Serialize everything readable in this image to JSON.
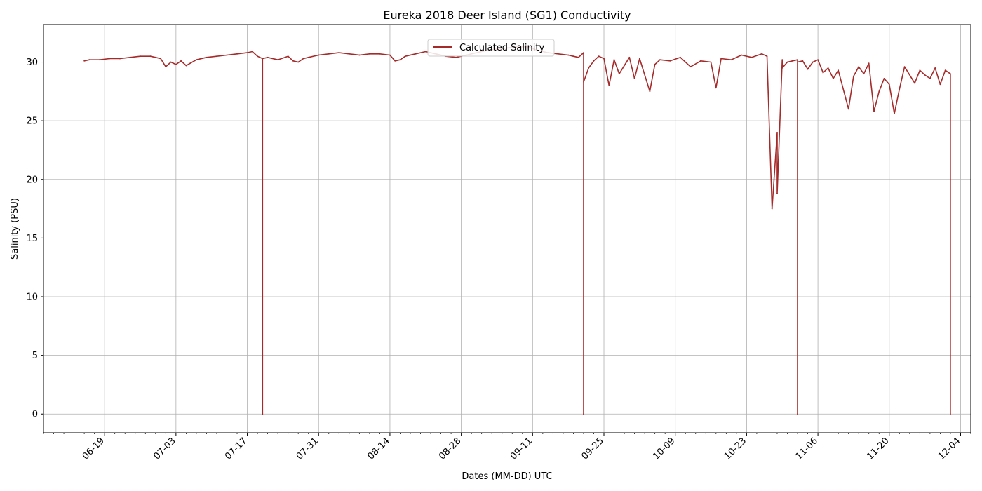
{
  "chart_data": {
    "type": "line",
    "title": "Eureka 2018 Deer Island (SG1) Conductivity",
    "xlabel": "Dates (MM-DD) UTC",
    "ylabel": "Salinity (PSU)",
    "xlim": [
      "2018-06-07",
      "2018-12-06"
    ],
    "ylim": [
      -1.6,
      33.2
    ],
    "x_ticks": [
      "06-19",
      "07-03",
      "07-17",
      "07-31",
      "08-14",
      "08-28",
      "09-11",
      "09-25",
      "10-09",
      "10-23",
      "11-06",
      "11-20",
      "12-04"
    ],
    "y_ticks": [
      0,
      5,
      10,
      15,
      20,
      25,
      30
    ],
    "grid": true,
    "legend_position": "top-center",
    "series": [
      {
        "name": "Calculated Salinity",
        "color": "#a52a2a",
        "x": [
          "2018-06-15",
          "2018-06-16",
          "2018-06-18",
          "2018-06-20",
          "2018-06-22",
          "2018-06-24",
          "2018-06-26",
          "2018-06-28",
          "2018-06-29",
          "2018-06-30",
          "2018-07-01",
          "2018-07-02",
          "2018-07-03",
          "2018-07-04",
          "2018-07-05",
          "2018-07-07",
          "2018-07-09",
          "2018-07-11",
          "2018-07-13",
          "2018-07-15",
          "2018-07-17",
          "2018-07-18",
          "2018-07-19",
          "2018-07-20",
          "2018-07-20",
          "2018-07-20",
          "2018-07-21",
          "2018-07-23",
          "2018-07-25",
          "2018-07-26",
          "2018-07-27",
          "2018-07-28",
          "2018-07-29",
          "2018-07-31",
          "2018-08-02",
          "2018-08-04",
          "2018-08-06",
          "2018-08-08",
          "2018-08-10",
          "2018-08-12",
          "2018-08-14",
          "2018-08-15",
          "2018-08-16",
          "2018-08-17",
          "2018-08-19",
          "2018-08-21",
          "2018-08-23",
          "2018-08-25",
          "2018-08-27",
          "2018-08-29",
          "2018-08-31",
          "2018-09-02",
          "2018-09-04",
          "2018-09-06",
          "2018-09-08",
          "2018-09-10",
          "2018-09-12",
          "2018-09-14",
          "2018-09-16",
          "2018-09-18",
          "2018-09-19",
          "2018-09-20",
          "2018-09-21",
          "2018-09-21",
          "2018-09-21",
          "2018-09-22",
          "2018-09-23",
          "2018-09-24",
          "2018-09-25",
          "2018-09-26",
          "2018-09-27",
          "2018-09-28",
          "2018-09-30",
          "2018-10-01",
          "2018-10-02",
          "2018-10-04",
          "2018-10-05",
          "2018-10-06",
          "2018-10-08",
          "2018-10-10",
          "2018-10-12",
          "2018-10-14",
          "2018-10-16",
          "2018-10-17",
          "2018-10-18",
          "2018-10-20",
          "2018-10-22",
          "2018-10-24",
          "2018-10-26",
          "2018-10-27",
          "2018-10-28",
          "2018-10-29",
          "2018-10-29",
          "2018-10-30",
          "2018-10-30",
          "2018-10-31",
          "2018-11-01",
          "2018-11-02",
          "2018-11-02",
          "2018-11-02",
          "2018-11-03",
          "2018-11-04",
          "2018-11-05",
          "2018-11-06",
          "2018-11-07",
          "2018-11-08",
          "2018-11-09",
          "2018-11-10",
          "2018-11-12",
          "2018-11-13",
          "2018-11-14",
          "2018-11-15",
          "2018-11-16",
          "2018-11-17",
          "2018-11-18",
          "2018-11-19",
          "2018-11-20",
          "2018-11-21",
          "2018-11-22",
          "2018-11-23",
          "2018-11-25",
          "2018-11-26",
          "2018-11-27",
          "2018-11-28",
          "2018-11-29",
          "2018-11-30",
          "2018-12-01",
          "2018-12-02",
          "2018-12-02"
        ],
        "y": [
          30.1,
          30.2,
          30.2,
          30.3,
          30.3,
          30.4,
          30.5,
          30.5,
          30.4,
          30.3,
          29.6,
          30.0,
          29.8,
          30.1,
          29.7,
          30.2,
          30.4,
          30.5,
          30.6,
          30.7,
          30.8,
          30.9,
          30.5,
          30.3,
          0.0,
          30.3,
          30.4,
          30.2,
          30.5,
          30.1,
          30.0,
          30.3,
          30.4,
          30.6,
          30.7,
          30.8,
          30.7,
          30.6,
          30.7,
          30.7,
          30.6,
          30.1,
          30.2,
          30.5,
          30.7,
          30.9,
          30.7,
          30.5,
          30.4,
          30.6,
          30.8,
          31.0,
          31.1,
          31.2,
          31.3,
          31.3,
          31.0,
          30.8,
          30.7,
          30.6,
          30.5,
          30.4,
          30.8,
          0.0,
          28.3,
          29.5,
          30.1,
          30.5,
          30.3,
          28.0,
          30.2,
          29.0,
          30.4,
          28.6,
          30.3,
          27.5,
          29.8,
          30.2,
          30.1,
          30.4,
          29.6,
          30.1,
          30.0,
          27.8,
          30.3,
          30.2,
          30.6,
          30.4,
          30.7,
          30.5,
          17.5,
          24.0,
          18.8,
          30.2,
          29.5,
          30.0,
          30.1,
          30.2,
          0.0,
          30.0,
          30.1,
          29.4,
          30.0,
          30.2,
          29.1,
          29.5,
          28.6,
          29.3,
          26.0,
          28.8,
          29.6,
          29.0,
          29.9,
          25.8,
          27.5,
          28.6,
          28.1,
          25.6,
          27.7,
          29.6,
          28.2,
          29.3,
          28.9,
          28.6,
          29.5,
          28.1,
          29.3,
          29.0,
          0.0
        ]
      }
    ]
  }
}
